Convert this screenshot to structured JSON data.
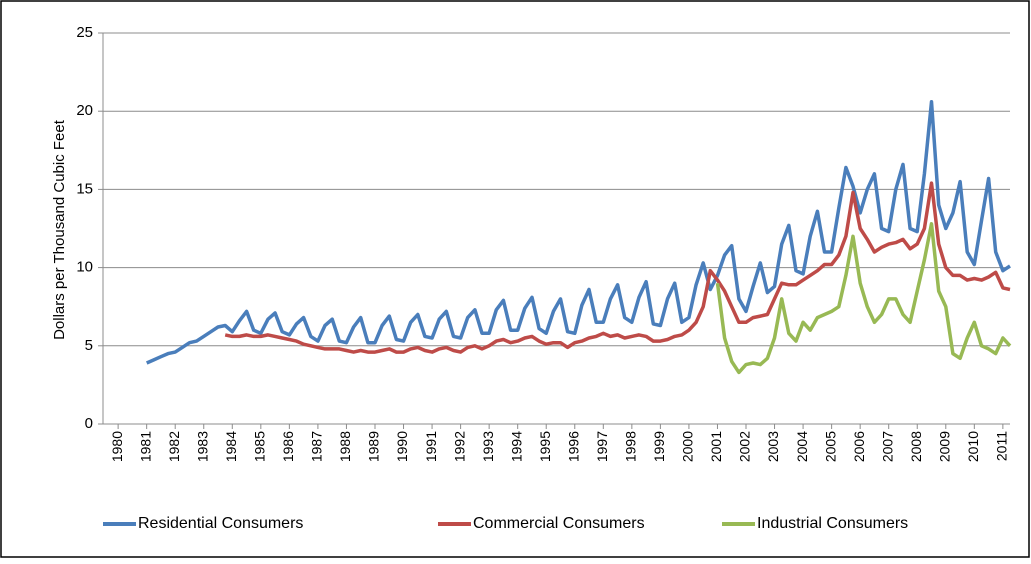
{
  "chart_data": {
    "type": "line",
    "y_label": "Dollars per Thousand  Cubic Feet",
    "xlim": [
      1979.47,
      2011.25
    ],
    "xticks": [
      1980,
      1981,
      1982,
      1983,
      1984,
      1985,
      1986,
      1987,
      1988,
      1989,
      1990,
      1991,
      1992,
      1993,
      1994,
      1995,
      1996,
      1997,
      1998,
      1999,
      2000,
      2001,
      2002,
      2003,
      2004,
      2005,
      2006,
      2007,
      2008,
      2009,
      2010,
      2011
    ],
    "ylim": [
      0,
      25
    ],
    "yticks": [
      0,
      5,
      10,
      15,
      20,
      25
    ],
    "grid": true,
    "legend": "bottom",
    "x": [
      1981,
      1981.25,
      1981.5,
      1981.75,
      1982,
      1982.25,
      1982.5,
      1982.75,
      1983,
      1983.25,
      1983.5,
      1983.75,
      1984,
      1984.25,
      1984.5,
      1984.75,
      1985,
      1985.25,
      1985.5,
      1985.75,
      1986,
      1986.25,
      1986.5,
      1986.75,
      1987,
      1987.25,
      1987.5,
      1987.75,
      1988,
      1988.25,
      1988.5,
      1988.75,
      1989,
      1989.25,
      1989.5,
      1989.75,
      1990,
      1990.25,
      1990.5,
      1990.75,
      1991,
      1991.25,
      1991.5,
      1991.75,
      1992,
      1992.25,
      1992.5,
      1992.75,
      1993,
      1993.25,
      1993.5,
      1993.75,
      1994,
      1994.25,
      1994.5,
      1994.75,
      1995,
      1995.25,
      1995.5,
      1995.75,
      1996,
      1996.25,
      1996.5,
      1996.75,
      1997,
      1997.25,
      1997.5,
      1997.75,
      1998,
      1998.25,
      1998.5,
      1998.75,
      1999,
      1999.25,
      1999.5,
      1999.75,
      2000,
      2000.25,
      2000.5,
      2000.75,
      2001,
      2001.25,
      2001.5,
      2001.75,
      2002,
      2002.25,
      2002.5,
      2002.75,
      2003,
      2003.25,
      2003.5,
      2003.75,
      2004,
      2004.25,
      2004.5,
      2004.75,
      2005,
      2005.25,
      2005.5,
      2005.75,
      2006,
      2006.25,
      2006.5,
      2006.75,
      2007,
      2007.25,
      2007.5,
      2007.75,
      2008,
      2008.25,
      2008.5,
      2008.75,
      2009,
      2009.25,
      2009.5,
      2009.75,
      2010,
      2010.25,
      2010.5,
      2010.75,
      2011,
      2011.25
    ],
    "series": [
      {
        "name": "Residential Consumers",
        "color": "#4a7ebb",
        "values": [
          3.9,
          4.1,
          4.3,
          4.5,
          4.6,
          4.9,
          5.2,
          5.3,
          5.6,
          5.9,
          6.2,
          6.3,
          5.9,
          6.6,
          7.2,
          6.0,
          5.8,
          6.7,
          7.1,
          5.9,
          5.7,
          6.4,
          6.8,
          5.6,
          5.3,
          6.3,
          6.7,
          5.3,
          5.2,
          6.2,
          6.8,
          5.2,
          5.2,
          6.3,
          6.9,
          5.4,
          5.3,
          6.5,
          7.0,
          5.6,
          5.5,
          6.7,
          7.2,
          5.6,
          5.5,
          6.8,
          7.3,
          5.8,
          5.8,
          7.3,
          7.9,
          6.0,
          6.0,
          7.4,
          8.1,
          6.1,
          5.8,
          7.2,
          8.0,
          5.9,
          5.8,
          7.6,
          8.6,
          6.5,
          6.5,
          8.0,
          8.9,
          6.8,
          6.5,
          8.1,
          9.1,
          6.4,
          6.3,
          8.0,
          9.0,
          6.5,
          6.8,
          8.9,
          10.3,
          8.6,
          9.5,
          10.8,
          11.4,
          8.0,
          7.2,
          8.8,
          10.3,
          8.4,
          8.8,
          11.5,
          12.7,
          9.8,
          9.6,
          12.0,
          13.6,
          11.0,
          11.0,
          13.8,
          16.4,
          15.2,
          13.5,
          15.0,
          16.0,
          12.5,
          12.3,
          15.0,
          16.6,
          12.5,
          12.3,
          16.0,
          20.6,
          14.0,
          12.5,
          13.5,
          15.5,
          11.0,
          10.2,
          13.0,
          15.7,
          11.0,
          9.8,
          10.1
        ]
      },
      {
        "name": "Commercial Consumers",
        "color": "#be4b48",
        "values": [
          null,
          null,
          null,
          null,
          null,
          null,
          null,
          null,
          null,
          null,
          null,
          5.7,
          5.6,
          5.6,
          5.7,
          5.6,
          5.6,
          5.7,
          5.6,
          5.5,
          5.4,
          5.3,
          5.1,
          5.0,
          4.9,
          4.8,
          4.8,
          4.8,
          4.7,
          4.6,
          4.7,
          4.6,
          4.6,
          4.7,
          4.8,
          4.6,
          4.6,
          4.8,
          4.9,
          4.7,
          4.6,
          4.8,
          4.9,
          4.7,
          4.6,
          4.9,
          5.0,
          4.8,
          5.0,
          5.3,
          5.4,
          5.2,
          5.3,
          5.5,
          5.6,
          5.3,
          5.1,
          5.2,
          5.2,
          4.9,
          5.2,
          5.3,
          5.5,
          5.6,
          5.8,
          5.6,
          5.7,
          5.5,
          5.6,
          5.7,
          5.6,
          5.3,
          5.3,
          5.4,
          5.6,
          5.7,
          6.0,
          6.5,
          7.5,
          9.8,
          9.2,
          8.5,
          7.5,
          6.5,
          6.5,
          6.8,
          6.9,
          7.0,
          8.0,
          9.0,
          8.9,
          8.9,
          9.2,
          9.5,
          9.8,
          10.2,
          10.2,
          10.8,
          12.0,
          14.8,
          12.5,
          11.8,
          11.0,
          11.3,
          11.5,
          11.6,
          11.8,
          11.2,
          11.5,
          12.5,
          15.4,
          11.5,
          10.0,
          9.5,
          9.5,
          9.2,
          9.3,
          9.2,
          9.4,
          9.7,
          8.7,
          8.6
        ]
      },
      {
        "name": "Industrial Consumers",
        "color": "#98b954",
        "values": [
          null,
          null,
          null,
          null,
          null,
          null,
          null,
          null,
          null,
          null,
          null,
          null,
          null,
          null,
          null,
          null,
          null,
          null,
          null,
          null,
          null,
          null,
          null,
          null,
          null,
          null,
          null,
          null,
          null,
          null,
          null,
          null,
          null,
          null,
          null,
          null,
          null,
          null,
          null,
          null,
          null,
          null,
          null,
          null,
          null,
          null,
          null,
          null,
          null,
          null,
          null,
          null,
          null,
          null,
          null,
          null,
          null,
          null,
          null,
          null,
          null,
          null,
          null,
          null,
          null,
          null,
          null,
          null,
          null,
          null,
          null,
          null,
          null,
          null,
          null,
          null,
          null,
          null,
          null,
          null,
          9.0,
          5.5,
          4.0,
          3.3,
          3.8,
          3.9,
          3.8,
          4.2,
          5.5,
          8.0,
          5.8,
          5.3,
          6.5,
          6.0,
          6.8,
          7.0,
          7.2,
          7.5,
          9.5,
          12.0,
          9.0,
          7.5,
          6.5,
          7.0,
          8.0,
          8.0,
          7.0,
          6.5,
          8.5,
          10.5,
          12.8,
          8.5,
          7.5,
          4.5,
          4.2,
          5.5,
          6.5,
          5.0,
          4.8,
          4.5,
          5.5,
          5.0
        ]
      }
    ]
  }
}
